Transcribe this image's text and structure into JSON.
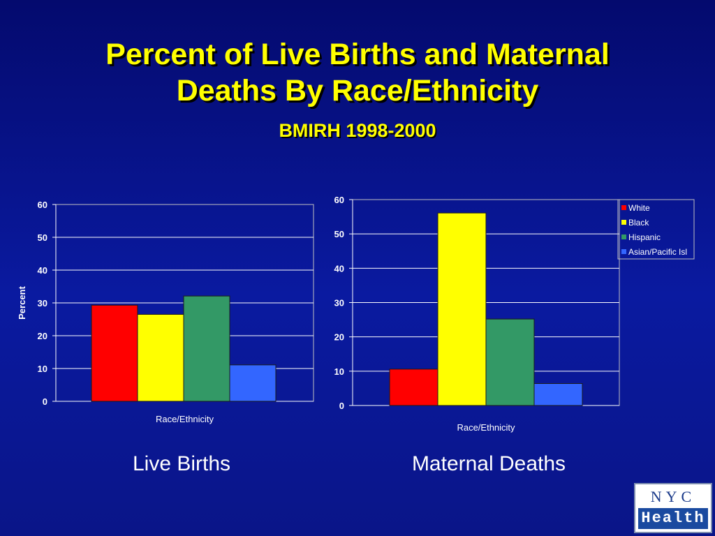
{
  "slide": {
    "title_line1": "Percent of Live Births and Maternal",
    "title_line2": "Deaths By Race/Ethnicity",
    "subtitle": "BMIRH 1998-2000",
    "caption_left": "Live Births",
    "caption_right": "Maternal Deaths"
  },
  "logo": {
    "top": "NYC",
    "bottom": "Health"
  },
  "colors": {
    "White": "#ff0000",
    "Black": "#ffff00",
    "Hispanic": "#339966",
    "Asian/Pacific Isl": "#3366ff"
  },
  "chart_data": [
    {
      "type": "bar",
      "title": "",
      "xlabel": "Race/Ethnicity",
      "ylabel": "Percent",
      "ylim": [
        0,
        60
      ],
      "yticks": [
        0,
        10,
        20,
        30,
        40,
        50,
        60
      ],
      "grid": true,
      "categories": [
        "White",
        "Black",
        "Hispanic",
        "Asian/Pacific Isl"
      ],
      "values": [
        29.3,
        26.5,
        32.1,
        11.1
      ]
    },
    {
      "type": "bar",
      "title": "",
      "xlabel": "Race/Ethnicity",
      "ylabel": "",
      "ylim": [
        0,
        60
      ],
      "yticks": [
        0,
        10,
        20,
        30,
        40,
        50,
        60
      ],
      "grid": true,
      "legend": "top-right",
      "categories": [
        "White",
        "Black",
        "Hispanic",
        "Asian/Pacific Isl"
      ],
      "values": [
        10.6,
        56.1,
        25.2,
        6.4
      ]
    }
  ]
}
